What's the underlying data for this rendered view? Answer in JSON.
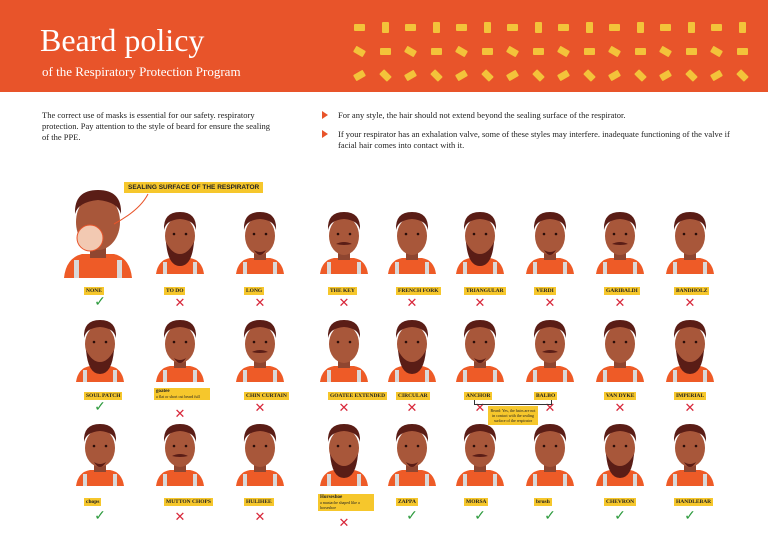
{
  "header": {
    "title": "Beard policy",
    "subtitle": "of the Respiratory Protection Program"
  },
  "intro": "The correct use of masks is essential for our safety. respiratory protection. Pay attention to the style of beard for ensure the sealing of the PPE.",
  "bullets": [
    "For any style, the hair should not extend beyond the sealing surface of the respirator.",
    "If your respirator has an exhalation valve, some of these styles may interfere. inadequate functioning of the valve if facial hair comes into contact with it."
  ],
  "callout": "SEALING SURFACE OF THE RESPIRATOR",
  "row1": [
    {
      "label": "NONE",
      "ok": true
    },
    {
      "label": "TO DO",
      "ok": false
    },
    {
      "label": "LONG",
      "ok": false
    },
    {
      "label": "THE KEY",
      "ok": false
    },
    {
      "label": "FRENCH FORK",
      "ok": false
    },
    {
      "label": "TRIANGULAR",
      "ok": false
    },
    {
      "label": "VERDI",
      "ok": false
    },
    {
      "label": "GARIBALDI",
      "ok": false
    },
    {
      "label": "BANDHOLZ",
      "ok": false
    }
  ],
  "row2": [
    {
      "label": "SOUL PATCH",
      "ok": true
    },
    {
      "label": "goatee",
      "note": "a flat or short cut beard full",
      "ok": false
    },
    {
      "label": "CHIN CURTAIN",
      "ok": false
    },
    {
      "label": "GOATEE EXTENDED",
      "ok": false
    },
    {
      "label": "CIRCULAR",
      "ok": false
    },
    {
      "label": "ANCHOR",
      "ok": false
    },
    {
      "label": "BALBO",
      "ok": false
    },
    {
      "label": "VAN DYKE",
      "ok": false
    },
    {
      "label": "IMPERIAL",
      "ok": false
    }
  ],
  "row2_note": "Beard: Yes, the hairs are not in contact with the sealing surface of the respirator",
  "row3": [
    {
      "label": "chops",
      "ok": true
    },
    {
      "label": "MUTTON CHOPS",
      "ok": false
    },
    {
      "label": "HULIHEE",
      "ok": false
    },
    {
      "label": "Horseshoe",
      "note": "a mustache shaped like a horseshoe",
      "ok": false
    },
    {
      "label": "ZAPPA",
      "ok": true
    },
    {
      "label": "MORSA",
      "ok": true
    },
    {
      "label": "brush",
      "ok": true
    },
    {
      "label": "CHEVRON",
      "ok": true
    },
    {
      "label": "HANDLEBAR",
      "ok": true
    }
  ],
  "marks": {
    "ok": "✓",
    "no": "✕"
  },
  "colors": {
    "accent": "#e8542a",
    "label": "#f6c72c",
    "ok": "#2e9b3f",
    "no": "#d8273a",
    "skin": "#a8573a",
    "hair": "#5a1d16",
    "vest": "#ee5b27"
  }
}
